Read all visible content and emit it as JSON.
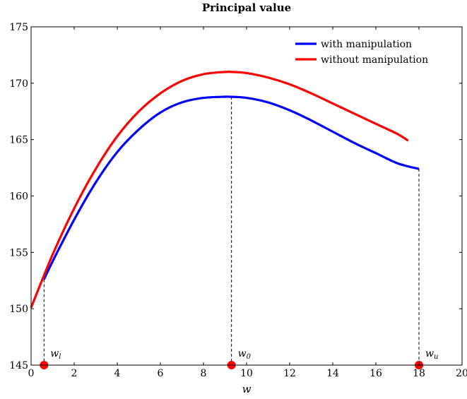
{
  "chart_data": {
    "type": "line",
    "title": "Principal value",
    "xlabel": "w",
    "ylabel": "",
    "xlim": [
      0,
      20
    ],
    "ylim": [
      145,
      175
    ],
    "xticks": [
      0,
      2,
      4,
      6,
      8,
      10,
      12,
      14,
      16,
      18,
      20
    ],
    "yticks": [
      145,
      150,
      155,
      160,
      165,
      170,
      175
    ],
    "grid": false,
    "legend_position": "top-right",
    "series": [
      {
        "name": "with manipulation",
        "color": "#0000ff",
        "x": [
          0.6,
          1,
          2,
          3,
          4,
          5,
          6,
          7,
          8,
          9,
          9.2,
          10,
          11,
          12,
          13,
          14,
          15,
          16,
          17,
          18
        ],
        "y": [
          152.6,
          154.2,
          157.9,
          161.2,
          163.9,
          165.9,
          167.4,
          168.3,
          168.7,
          168.8,
          168.8,
          168.7,
          168.3,
          167.6,
          166.7,
          165.7,
          164.7,
          163.8,
          162.9,
          162.4
        ]
      },
      {
        "name": "without manipulation",
        "color": "#ff0000",
        "x": [
          0,
          1,
          2,
          3,
          4,
          5,
          6,
          7,
          8,
          9,
          9.3,
          10,
          11,
          12,
          13,
          14,
          15,
          16,
          17,
          17.5
        ],
        "y": [
          150.1,
          154.8,
          158.9,
          162.4,
          165.3,
          167.5,
          169.1,
          170.2,
          170.8,
          171.0,
          171.0,
          170.9,
          170.5,
          169.9,
          169.1,
          168.2,
          167.3,
          166.4,
          165.5,
          164.9
        ]
      }
    ],
    "markers": [
      {
        "name": "w_l",
        "base": "w",
        "sub": "l",
        "x": 0.6,
        "y": 145,
        "drop_to": 152.6,
        "color": "#ff0000"
      },
      {
        "name": "w_0",
        "base": "w",
        "sub": "0",
        "x": 9.3,
        "y": 145,
        "drop_to": 168.8,
        "color": "#ff0000"
      },
      {
        "name": "w_u",
        "base": "w",
        "sub": "u",
        "x": 18.0,
        "y": 145,
        "drop_to": 162.4,
        "color": "#ff0000"
      }
    ]
  }
}
